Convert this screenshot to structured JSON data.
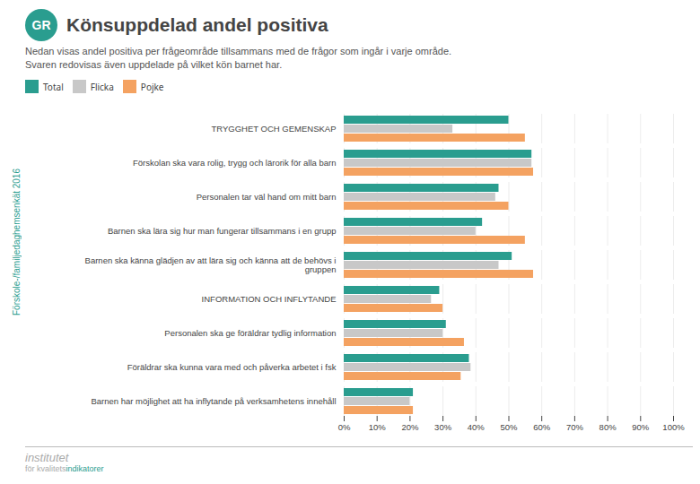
{
  "chart_data": {
    "type": "bar",
    "orientation": "horizontal",
    "title": "Könsuppdelad andel positiva",
    "subtitle": [
      "Nedan visas andel positiva per frågeområde tillsammans med de frågor som ingår i varje område.",
      "Svaren redovisas även uppdelade på vilket kön barnet har."
    ],
    "annotations": [
      "Förskole-/familjedaghemsenkät 2016",
      "GR",
      "institutet",
      "för kvalitets",
      "indikatorer"
    ],
    "categories": [
      "TRYGGHET OCH GEMENSKAP",
      "Förskolan ska vara rolig, trygg och lärorik för alla barn",
      "Personalen tar väl hand om mitt barn",
      "Barnen ska lära sig hur man fungerar tillsammans i en grupp",
      "Barnen ska känna glädjen av att lära sig och känna att de behövs i\ngruppen",
      "INFORMATION OCH INFLYTANDE",
      "Personalen ska ge föräldrar tydlig information",
      "Föräldrar ska kunna vara med och påverka arbetet i fsk",
      "Barnen har möjlighet att ha inflytande på verksamhetens innehåll"
    ],
    "series": [
      {
        "name": "Total",
        "color": "#2a9d8f",
        "values": [
          0.5,
          0.57,
          0.47,
          0.42,
          0.51,
          0.29,
          0.31,
          0.38,
          0.21
        ]
      },
      {
        "name": "Flicka",
        "color": "#c8c8c8",
        "values": [
          0.33,
          0.57,
          0.46,
          0.4,
          0.47,
          0.265,
          0.3,
          0.385,
          0.2
        ]
      },
      {
        "name": "Pojke",
        "color": "#f4a261",
        "values": [
          0.55,
          0.575,
          0.5,
          0.55,
          0.575,
          0.3,
          0.365,
          0.355,
          0.21
        ]
      }
    ],
    "xlim": [
      0,
      1.0
    ],
    "xticks": [
      {
        "value": 0.0,
        "label": "0%"
      },
      {
        "value": 0.1,
        "label": "10%"
      },
      {
        "value": 0.2,
        "label": "20%"
      },
      {
        "value": 0.3,
        "label": "30%"
      },
      {
        "value": 0.4,
        "label": "40%"
      },
      {
        "value": 0.5,
        "label": "50%"
      },
      {
        "value": 0.6,
        "label": "60%"
      },
      {
        "value": 0.7,
        "label": "70%"
      },
      {
        "value": 0.8,
        "label": "80%"
      },
      {
        "value": 0.9,
        "label": "90%"
      },
      {
        "value": 1.0,
        "label": "100%"
      }
    ],
    "grid": true,
    "legend": "top"
  }
}
